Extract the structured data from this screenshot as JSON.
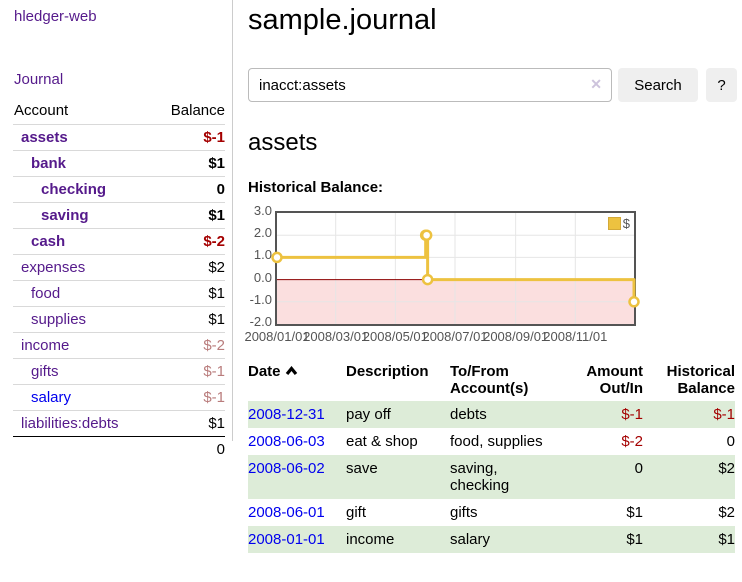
{
  "brand": "hledger-web",
  "nav": {
    "journal_label": "Journal"
  },
  "sidebar": {
    "headers": {
      "account": "Account",
      "balance": "Balance"
    },
    "accounts": [
      {
        "name": "assets",
        "balance": "$-1"
      },
      {
        "name": "bank",
        "balance": "$1"
      },
      {
        "name": "checking",
        "balance": "0"
      },
      {
        "name": "saving",
        "balance": "$1"
      },
      {
        "name": "cash",
        "balance": "$-2"
      },
      {
        "name": "expenses",
        "balance": "$2"
      },
      {
        "name": "food",
        "balance": "$1"
      },
      {
        "name": "supplies",
        "balance": "$1"
      },
      {
        "name": "income",
        "balance": "$-2"
      },
      {
        "name": "gifts",
        "balance": "$-1"
      },
      {
        "name": "salary",
        "balance": "$-1"
      },
      {
        "name": "liabilities:debts",
        "balance": "$1"
      }
    ],
    "total": "0"
  },
  "header": {
    "title": "sample.journal"
  },
  "search": {
    "value": "inacct:assets",
    "clear_icon": "✕",
    "button_label": "Search",
    "help_label": "?"
  },
  "section": {
    "heading": "assets",
    "chart_label": "Historical Balance:"
  },
  "chart_data": {
    "type": "line",
    "step": true,
    "title": "Historical Balance:",
    "legend": "$",
    "legend_position": "top-right",
    "series": [
      {
        "name": "$",
        "color": "#edc240",
        "points": [
          [
            "2008-01-01",
            1
          ],
          [
            "2008-06-01",
            2
          ],
          [
            "2008-06-02",
            2
          ],
          [
            "2008-06-03",
            0
          ],
          [
            "2008-12-31",
            -1
          ]
        ]
      }
    ],
    "x_start": "2008-01-01",
    "x_end": "2008-12-31",
    "x_ticks": [
      "2008/01/01",
      "2008/03/01",
      "2008/05/01",
      "2008/07/01",
      "2008/09/01",
      "2008/11/01"
    ],
    "y_ticks": [
      "3.0",
      "2.0",
      "1.0",
      "0.0",
      "-1.0",
      "-2.0"
    ],
    "ylim": [
      -2,
      3
    ],
    "grid": true,
    "grid_color": "#e6e6e6",
    "negative_fill": "#fbdfdf",
    "zero_line_color": "#8b0000"
  },
  "transactions": {
    "headers": [
      "Date",
      "Description",
      "To/From Account(s)",
      "Amount Out/In",
      "Historical Balance"
    ],
    "rows": [
      {
        "date": "2008-12-31",
        "description": "pay off",
        "accounts": "debts",
        "amount": "$-1",
        "balance": "$-1"
      },
      {
        "date": "2008-06-03",
        "description": "eat & shop",
        "accounts": "food, supplies",
        "amount": "$-2",
        "balance": "0"
      },
      {
        "date": "2008-06-02",
        "description": "save",
        "accounts": "saving, checking",
        "amount": "0",
        "balance": "$2"
      },
      {
        "date": "2008-06-01",
        "description": "gift",
        "accounts": "gifts",
        "amount": "$1",
        "balance": "$2"
      },
      {
        "date": "2008-01-01",
        "description": "income",
        "accounts": "salary",
        "amount": "$1",
        "balance": "$1"
      }
    ]
  },
  "colors": {
    "link_purple": "#551a8b",
    "link_blue": "#0000ee",
    "negative_strong": "#a40000",
    "negative_faded": "#b97c7c",
    "row_green": "#ddecd8",
    "series_gold": "#edc240",
    "negative_region_pink": "#fbdfdf",
    "zero_line": "#8b0000"
  }
}
